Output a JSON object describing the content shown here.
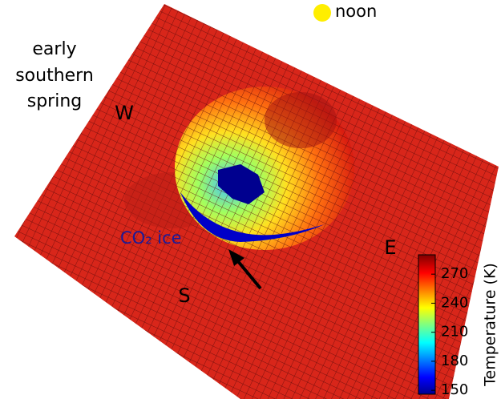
{
  "annotations": {
    "season": [
      "early",
      "southern",
      "spring"
    ],
    "time": "noon",
    "west": "W",
    "east": "E",
    "south": "S",
    "ice": "CO₂ ice"
  },
  "colorbar": {
    "label": "Temperature (K)",
    "lim": [
      146,
      290
    ],
    "ticks": [
      150,
      180,
      210,
      240,
      270
    ],
    "colormap": "jet"
  }
}
